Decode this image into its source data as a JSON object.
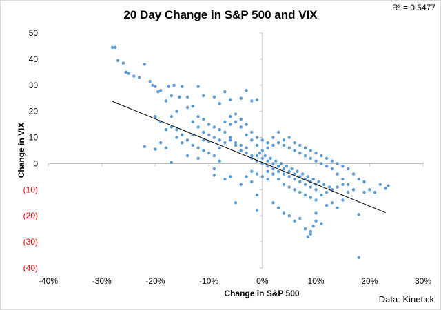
{
  "r2_label": "R² = 0.5477",
  "source_label": "Data: Kinetick",
  "chart_data": {
    "type": "scatter",
    "title": "20 Day Change in S&P 500 and VIX",
    "xlabel": "Change in S&P 500",
    "ylabel": "Change in VIX",
    "xlim": [
      -40,
      30
    ],
    "ylim": [
      -40,
      50
    ],
    "x_ticks": [
      {
        "value": -40,
        "label": "-40%"
      },
      {
        "value": -30,
        "label": "-30%"
      },
      {
        "value": -20,
        "label": "-20%"
      },
      {
        "value": -10,
        "label": "-10%"
      },
      {
        "value": 0,
        "label": "0%"
      },
      {
        "value": 10,
        "label": "10%"
      },
      {
        "value": 20,
        "label": "20%"
      },
      {
        "value": 30,
        "label": "30%"
      }
    ],
    "y_ticks": [
      {
        "value": 50,
        "label": "50",
        "color": "#000000"
      },
      {
        "value": 40,
        "label": "40",
        "color": "#000000"
      },
      {
        "value": 30,
        "label": "30",
        "color": "#000000"
      },
      {
        "value": 20,
        "label": "20",
        "color": "#000000"
      },
      {
        "value": 10,
        "label": "10",
        "color": "#000000"
      },
      {
        "value": 0,
        "label": "0",
        "color": "#000000"
      },
      {
        "value": -10,
        "label": "(10)",
        "color": "#ff0000"
      },
      {
        "value": -20,
        "label": "(20)",
        "color": "#ff0000"
      },
      {
        "value": -30,
        "label": "(30)",
        "color": "#ff0000"
      },
      {
        "value": -40,
        "label": "(40)",
        "color": "#ff0000"
      }
    ],
    "grid": false,
    "point_color": "#5b9bd5",
    "trendline": {
      "color": "#000000",
      "from": [
        -28,
        23.8
      ],
      "to": [
        23,
        -18.8
      ]
    },
    "series": [
      {
        "points": [
          [
            -28,
            44.5
          ],
          [
            -27.5,
            44.5
          ],
          [
            -27,
            39.5
          ],
          [
            -26,
            38.5
          ],
          [
            -25.5,
            35
          ],
          [
            -25,
            34.5
          ],
          [
            -24,
            33.5
          ],
          [
            -23,
            33
          ],
          [
            -22,
            38
          ],
          [
            -21,
            31.5
          ],
          [
            -20.5,
            30
          ],
          [
            -20,
            29.5
          ],
          [
            -19.5,
            27.5
          ],
          [
            -19,
            28
          ],
          [
            -17.5,
            29.5
          ],
          [
            -16.5,
            30
          ],
          [
            -15,
            29.5
          ],
          [
            -15.5,
            25.5
          ],
          [
            -17,
            26
          ],
          [
            -18,
            24
          ],
          [
            -14,
            25.5
          ],
          [
            -12,
            29.5
          ],
          [
            -11,
            26
          ],
          [
            -9,
            25.5
          ],
          [
            -8,
            23
          ],
          [
            -7,
            27.5
          ],
          [
            -6,
            24.5
          ],
          [
            -4,
            25
          ],
          [
            -3,
            28
          ],
          [
            -2,
            24
          ],
          [
            -1,
            24.5
          ],
          [
            -13,
            22
          ],
          [
            -14,
            21.5
          ],
          [
            -16,
            20
          ],
          [
            -17,
            18
          ],
          [
            -20,
            18
          ],
          [
            -19,
            16
          ],
          [
            -22,
            6.5
          ],
          [
            -20,
            5.5
          ],
          [
            -18,
            6
          ],
          [
            -19,
            8
          ],
          [
            -17,
            0.5
          ],
          [
            -16,
            10
          ],
          [
            -15,
            8
          ],
          [
            -14,
            3
          ],
          [
            -13,
            11
          ],
          [
            -12,
            14
          ],
          [
            -11,
            12
          ],
          [
            -10,
            8.5
          ],
          [
            -9,
            10
          ],
          [
            -8,
            6
          ],
          [
            -7,
            12
          ],
          [
            -6,
            9
          ],
          [
            -5,
            7
          ],
          [
            -4,
            5
          ],
          [
            -3,
            4
          ],
          [
            -2,
            2
          ],
          [
            -1,
            3
          ],
          [
            -12,
            2
          ],
          [
            -9,
            -2
          ],
          [
            -7,
            -6
          ],
          [
            -9,
            -4.5
          ],
          [
            -3,
            -5
          ],
          [
            -4,
            -8
          ],
          [
            -5,
            -15
          ],
          [
            -6,
            -5
          ],
          [
            -2,
            -7
          ],
          [
            -1,
            -12
          ],
          [
            -1,
            -18
          ],
          [
            1,
            -6
          ],
          [
            2,
            -15
          ],
          [
            3,
            -17
          ],
          [
            4,
            -19
          ],
          [
            5,
            -20
          ],
          [
            6,
            -22
          ],
          [
            7,
            -21
          ],
          [
            8,
            -25
          ],
          [
            9,
            -26
          ],
          [
            9.5,
            -24
          ],
          [
            10,
            -22
          ],
          [
            11,
            -23
          ],
          [
            8.5,
            -28
          ],
          [
            9,
            -27
          ],
          [
            10,
            -19
          ],
          [
            12,
            -16
          ],
          [
            13,
            -15
          ],
          [
            14,
            -17
          ],
          [
            15,
            -14
          ],
          [
            16,
            -11
          ],
          [
            17,
            -10
          ],
          [
            18,
            -19.5
          ],
          [
            18,
            -36
          ],
          [
            19,
            -11
          ],
          [
            22,
            -8
          ],
          [
            23,
            -9.5
          ],
          [
            23.5,
            -8.5
          ],
          [
            16,
            -8
          ],
          [
            15,
            -6
          ],
          [
            14,
            -4
          ],
          [
            13,
            -2
          ],
          [
            12,
            -1
          ],
          [
            11,
            0
          ],
          [
            10,
            1
          ],
          [
            9,
            2
          ],
          [
            8,
            3
          ],
          [
            7,
            4
          ],
          [
            6,
            5
          ],
          [
            5,
            6
          ],
          [
            4,
            7
          ],
          [
            3,
            8
          ],
          [
            2,
            7
          ],
          [
            1,
            6
          ],
          [
            0,
            5
          ],
          [
            -0.5,
            4
          ],
          [
            0.5,
            3
          ],
          [
            1.5,
            2
          ],
          [
            2.5,
            1
          ],
          [
            3.5,
            0
          ],
          [
            4.5,
            -1
          ],
          [
            5.5,
            -2
          ],
          [
            6.5,
            -3
          ],
          [
            7.5,
            -4
          ],
          [
            8.5,
            -5
          ],
          [
            9.5,
            -6
          ],
          [
            10.5,
            -7
          ],
          [
            11.5,
            -8
          ],
          [
            12.5,
            -9
          ],
          [
            2,
            0
          ],
          [
            3,
            -1
          ],
          [
            4,
            -2
          ],
          [
            5,
            -3
          ],
          [
            6,
            -4
          ],
          [
            7,
            -5
          ],
          [
            8,
            -6
          ],
          [
            9,
            -7
          ],
          [
            10,
            -8
          ],
          [
            1,
            1
          ],
          [
            0,
            0
          ],
          [
            -1,
            1
          ],
          [
            -2,
            3
          ],
          [
            -3,
            6
          ],
          [
            -4,
            7
          ],
          [
            -5,
            8
          ],
          [
            -6,
            10
          ],
          [
            -7,
            8
          ],
          [
            -8,
            9
          ],
          [
            -10,
            11
          ],
          [
            -11,
            9
          ],
          [
            -6,
            15
          ],
          [
            -5,
            16
          ],
          [
            -4,
            17
          ],
          [
            -3,
            15
          ],
          [
            -2,
            12
          ],
          [
            -1,
            10
          ],
          [
            0,
            9
          ],
          [
            1,
            8
          ],
          [
            2,
            10
          ],
          [
            3,
            12
          ],
          [
            4,
            9
          ],
          [
            5,
            10
          ],
          [
            6,
            8
          ],
          [
            7,
            7
          ],
          [
            8,
            6
          ],
          [
            9,
            5
          ],
          [
            10,
            4
          ],
          [
            11,
            3
          ],
          [
            12,
            2
          ],
          [
            13,
            1
          ],
          [
            14,
            0
          ],
          [
            15,
            -1
          ],
          [
            16,
            -2
          ],
          [
            17,
            -4
          ],
          [
            18,
            -6
          ],
          [
            19,
            -7
          ],
          [
            20,
            -10
          ],
          [
            21,
            -11
          ],
          [
            -2,
            -3
          ],
          [
            -1,
            -4
          ],
          [
            0,
            -5
          ],
          [
            1,
            -3
          ],
          [
            2,
            -4
          ],
          [
            3,
            -6
          ],
          [
            4,
            -8
          ],
          [
            5,
            -9
          ],
          [
            6,
            -10
          ],
          [
            7,
            -11
          ],
          [
            8,
            -12
          ],
          [
            9,
            -13
          ],
          [
            10,
            -14
          ],
          [
            11,
            -12
          ],
          [
            12,
            -11
          ],
          [
            13,
            -10
          ],
          [
            14,
            -9
          ],
          [
            15,
            -8
          ],
          [
            -8,
            1
          ],
          [
            -9,
            3
          ],
          [
            -10,
            4
          ],
          [
            -11,
            5
          ],
          [
            -12,
            6
          ],
          [
            -13,
            7
          ],
          [
            -14,
            9
          ],
          [
            -15,
            11
          ],
          [
            -16,
            13
          ],
          [
            -17,
            14
          ],
          [
            -18,
            13
          ],
          [
            -13,
            16
          ],
          [
            -12,
            18
          ],
          [
            -11,
            17
          ],
          [
            -10,
            15
          ],
          [
            -9,
            14
          ],
          [
            -8,
            13
          ],
          [
            -7,
            16
          ],
          [
            -6,
            18
          ],
          [
            -5,
            19
          ],
          [
            -4,
            14
          ],
          [
            -3,
            11
          ],
          [
            -2,
            9
          ],
          [
            -1,
            7
          ],
          [
            0,
            2
          ],
          [
            1,
            -1
          ],
          [
            2,
            -2
          ],
          [
            3,
            -3
          ],
          [
            4,
            -4
          ],
          [
            5,
            -5
          ],
          [
            6,
            -6
          ],
          [
            7,
            -7
          ],
          [
            8,
            -8
          ],
          [
            9,
            -9
          ],
          [
            10,
            -10
          ]
        ]
      }
    ]
  }
}
